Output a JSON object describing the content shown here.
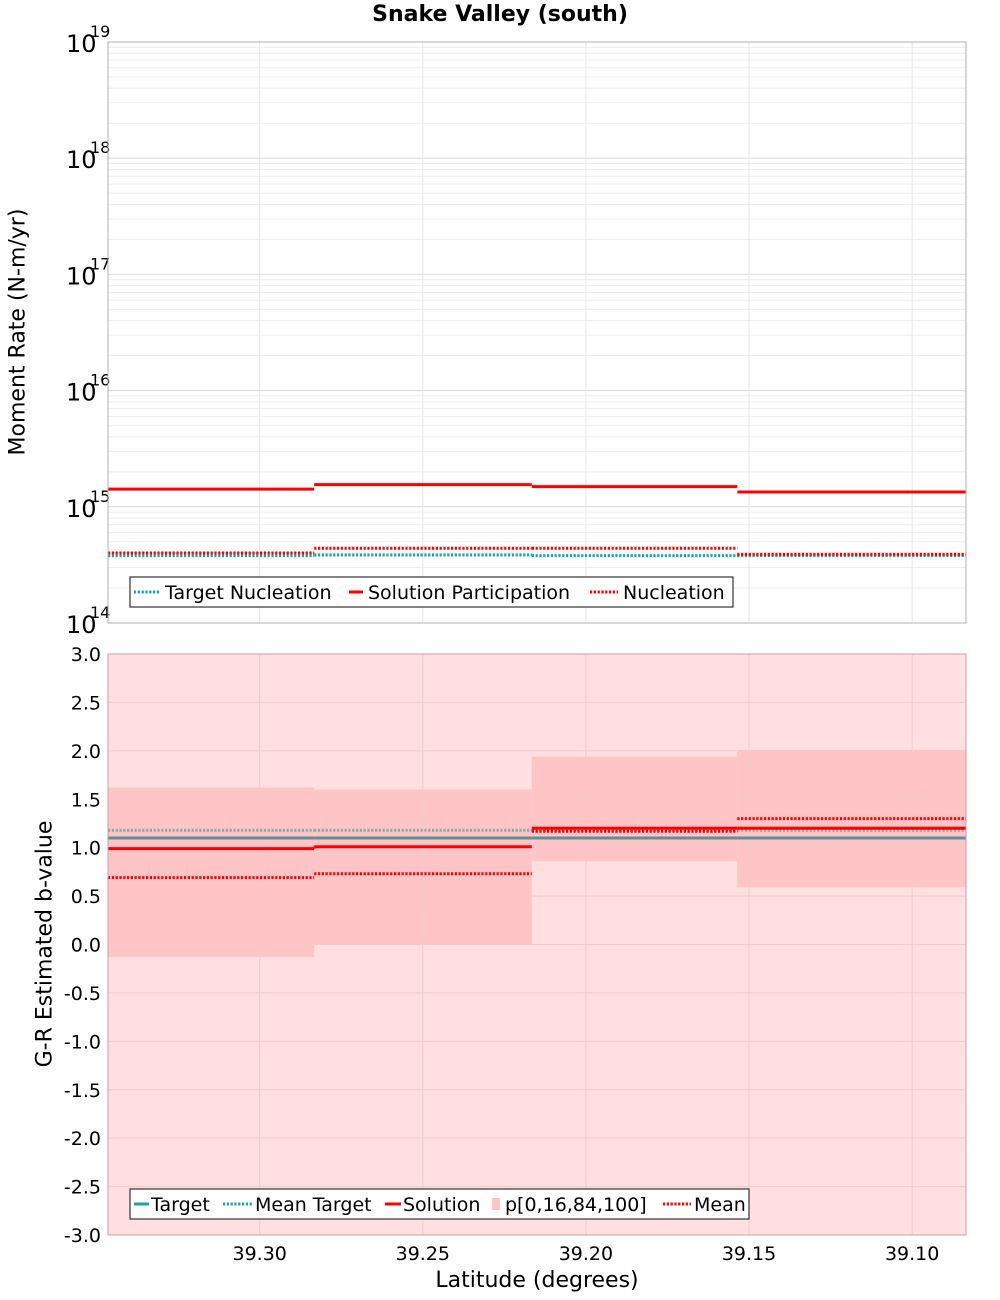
{
  "title": "Snake Valley (south)",
  "xlabel": "Latitude (degrees)",
  "colors": {
    "target": "#17a5b0",
    "mean_target": "#17a5b0",
    "solution": "#ff0000",
    "mean": "#ff0000",
    "band_outer": "#ffdfe0",
    "band_inner": "#ffc4c6",
    "grid": "#e2e2e2"
  },
  "chart_data": [
    {
      "type": "line",
      "panel": "top",
      "ylabel": "Moment Rate (N-m/yr)",
      "yscale": "log",
      "ylim": [
        100000000000000.0,
        1e+19
      ],
      "xlim": [
        39.3465,
        39.0835
      ],
      "x_reversed": true,
      "xticks": [
        39.3,
        39.25,
        39.2,
        39.15,
        39.1
      ],
      "ytick_bases": [
        "10",
        "10",
        "10",
        "10",
        "10",
        "10"
      ],
      "ytick_exponents": [
        "14",
        "15",
        "16",
        "17",
        "18",
        "19"
      ],
      "segment_edges": [
        39.3465,
        39.2833,
        39.2166,
        39.1536,
        39.0835
      ],
      "series": [
        {
          "name": "Target Nucleation",
          "style": "dotted",
          "color": "#17a5b0",
          "values": [
            380000000000000.0,
            385000000000000.0,
            380000000000000.0,
            380000000000000.0
          ]
        },
        {
          "name": "Solution Participation",
          "style": "solid",
          "color": "#ff0000",
          "values": [
            1420000000000000.0,
            1550000000000000.0,
            1490000000000000.0,
            1340000000000000.0
          ]
        },
        {
          "name": "Nucleation",
          "style": "dotted",
          "color": "#ff0000",
          "values": [
            400000000000000.0,
            440000000000000.0,
            440000000000000.0,
            390000000000000.0
          ]
        }
      ],
      "legend": {
        "position": "bottom-left",
        "entries": [
          "Target Nucleation",
          "Solution Participation",
          "Nucleation"
        ]
      }
    },
    {
      "type": "line",
      "panel": "bottom",
      "ylabel": "G-R Estimated b-value",
      "ylim": [
        -3.0,
        3.0
      ],
      "yticks": [
        "-3.0",
        "-2.5",
        "-2.0",
        "-1.5",
        "-1.0",
        "-0.5",
        "0.0",
        "0.5",
        "1.0",
        "1.5",
        "2.0",
        "2.5",
        "3.0"
      ],
      "xticks": [
        "39.30",
        "39.25",
        "39.20",
        "39.15",
        "39.10"
      ],
      "segment_edges": [
        39.3465,
        39.2833,
        39.2166,
        39.1536,
        39.0835
      ],
      "band_outer": {
        "name": "p[0,100]",
        "lower": [
          -3.0,
          -3.0,
          -3.0,
          -3.0
        ],
        "upper": [
          3.0,
          3.0,
          3.0,
          3.0
        ]
      },
      "band_inner": {
        "name": "p[16,84]",
        "lower": [
          -0.13,
          0.0,
          0.86,
          0.59
        ],
        "upper": [
          1.62,
          1.6,
          1.94,
          2.01
        ]
      },
      "series": [
        {
          "name": "Target",
          "style": "solid",
          "color": "#17a5b0",
          "values": [
            1.1,
            1.1,
            1.1,
            1.1
          ]
        },
        {
          "name": "Mean Target",
          "style": "dotted",
          "color": "#17a5b0",
          "values": [
            1.18,
            1.18,
            1.18,
            1.18
          ]
        },
        {
          "name": "Solution",
          "style": "solid",
          "color": "#ff0000",
          "values": [
            0.99,
            1.01,
            1.2,
            1.2
          ]
        },
        {
          "name": "Mean",
          "style": "dotted",
          "color": "#ff0000",
          "values": [
            0.69,
            0.73,
            1.17,
            1.3
          ]
        }
      ],
      "legend": {
        "position": "bottom-left",
        "entries": [
          "Target",
          "Mean Target",
          "Solution",
          "p[0,16,84,100]",
          "Mean"
        ]
      }
    }
  ]
}
